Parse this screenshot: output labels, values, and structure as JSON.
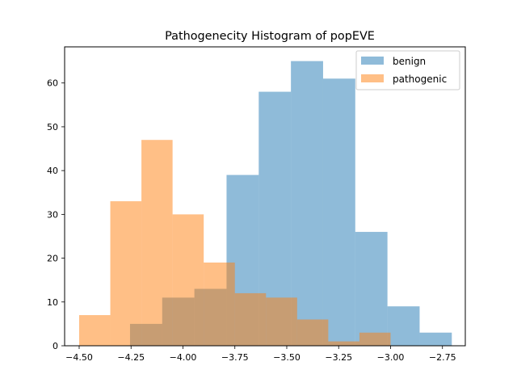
{
  "chart_data": {
    "type": "histogram",
    "title": "Pathogenecity Histogram of popEVE",
    "xlabel": "",
    "ylabel": "",
    "xlim": [
      -4.57,
      -2.64
    ],
    "ylim": [
      0,
      68.25
    ],
    "xticks": [
      -4.5,
      -4.25,
      -4.0,
      -3.75,
      -3.5,
      -3.25,
      -3.0,
      -2.75
    ],
    "xtick_labels": [
      "−4.50",
      "−4.25",
      "−4.00",
      "−3.75",
      "−3.50",
      "−3.25",
      "−3.00",
      "−2.75"
    ],
    "yticks": [
      0,
      10,
      20,
      30,
      40,
      50,
      60
    ],
    "ytick_labels": [
      "0",
      "10",
      "20",
      "30",
      "40",
      "50",
      "60"
    ],
    "grid": false,
    "legend": {
      "position": "top-right"
    },
    "series": [
      {
        "name": "benign",
        "color": "#1f77b4",
        "alpha": 0.5,
        "bin_edges": [
          -4.255,
          -4.1,
          -3.945,
          -3.79,
          -3.635,
          -3.48,
          -3.325,
          -3.17,
          -3.015,
          -2.86,
          -2.705
        ],
        "counts": [
          5,
          11,
          13,
          39,
          58,
          65,
          61,
          26,
          9,
          3
        ]
      },
      {
        "name": "pathogenic",
        "color": "#ff7f0e",
        "alpha": 0.5,
        "bin_edges": [
          -4.5,
          -4.35,
          -4.2,
          -4.05,
          -3.9,
          -3.75,
          -3.6,
          -3.45,
          -3.3,
          -3.15,
          -3.0
        ],
        "counts": [
          7,
          33,
          47,
          30,
          19,
          12,
          11,
          6,
          1,
          3
        ]
      }
    ]
  }
}
